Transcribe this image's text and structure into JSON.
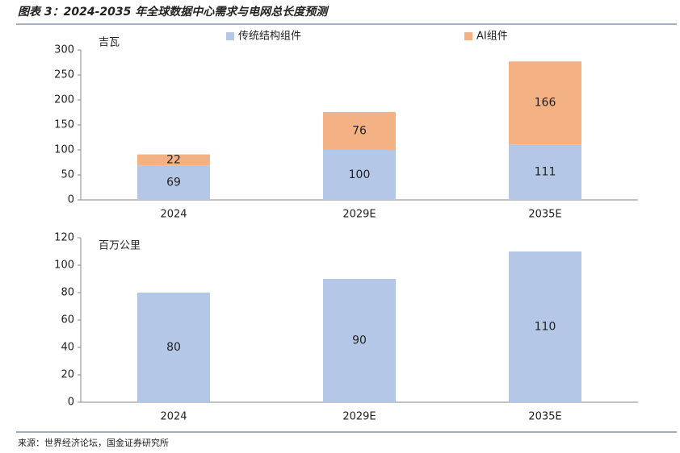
{
  "header": {
    "title": "图表 3：2024-2035 年全球数据中心需求与电网总长度预测"
  },
  "chart_data": [
    {
      "type": "bar",
      "stacked": true,
      "y_label": "吉瓦",
      "categories": [
        "2024",
        "2029E",
        "2035E"
      ],
      "series": [
        {
          "name": "传统结构组件",
          "color": "#b4c7e7",
          "values": [
            69,
            100,
            111
          ]
        },
        {
          "name": "AI组件",
          "color": "#f4b183",
          "values": [
            22,
            76,
            166
          ]
        }
      ],
      "ylim": [
        0,
        300
      ],
      "yticks": [
        0,
        50,
        100,
        150,
        200,
        250,
        300
      ],
      "legend": "top"
    },
    {
      "type": "bar",
      "y_label": "百万公里",
      "categories": [
        "2024",
        "2029E",
        "2035E"
      ],
      "series": [
        {
          "color": "#b4c7e7",
          "values": [
            80,
            90,
            110
          ]
        }
      ],
      "ylim": [
        0,
        120
      ],
      "yticks": [
        0,
        20,
        40,
        60,
        80,
        100,
        120
      ]
    }
  ],
  "footer": {
    "source": "来源：世界经济论坛，国金证券研究所"
  }
}
